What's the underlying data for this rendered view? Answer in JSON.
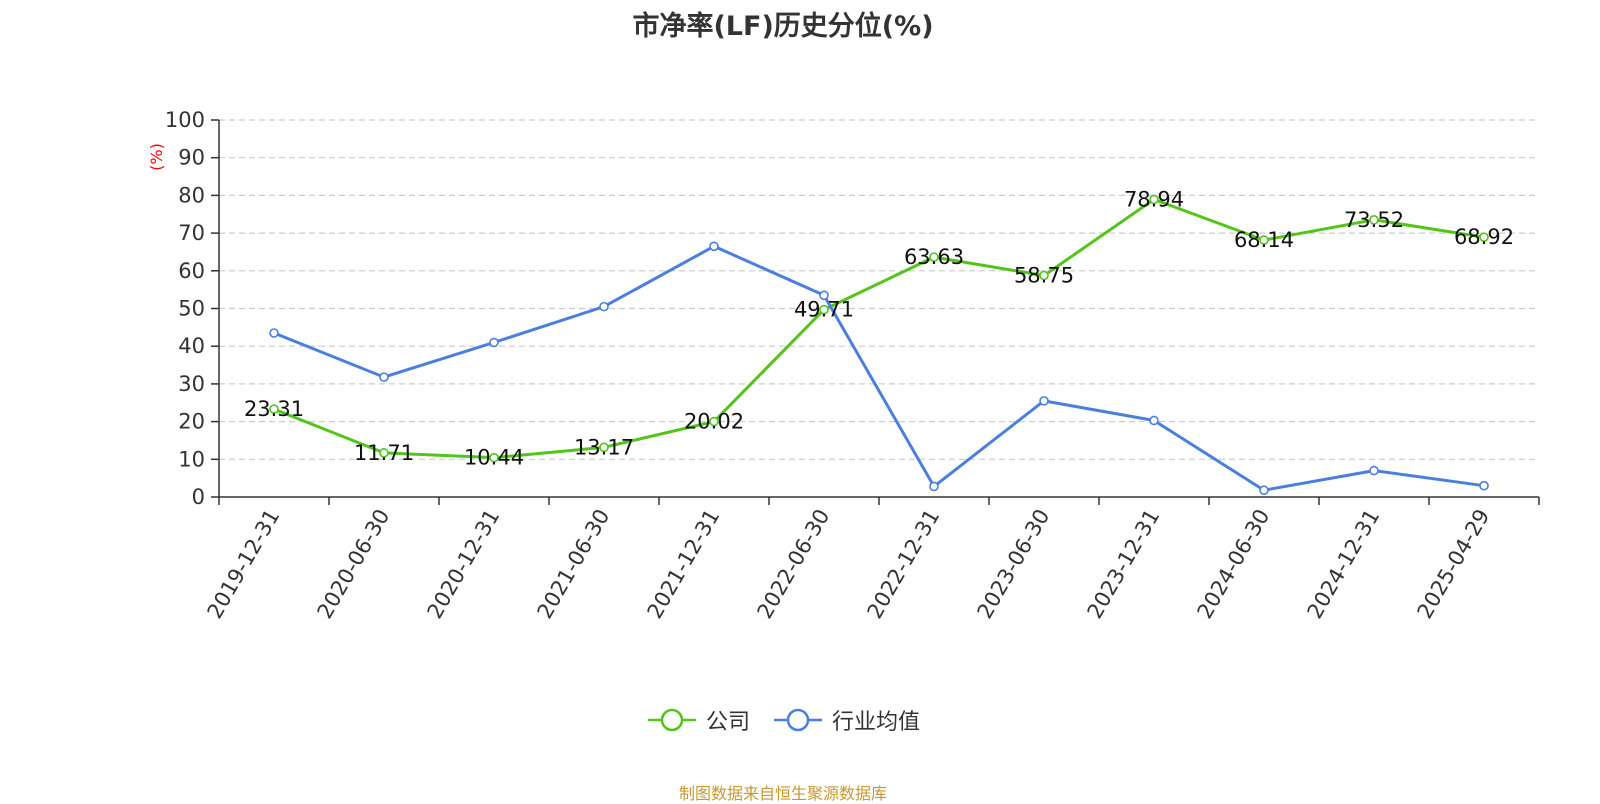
{
  "chart_data": {
    "type": "line",
    "title": "市净率(LF)历史分位(%)",
    "ylabel": "(%)",
    "ylim": [
      0,
      100
    ],
    "yticks": [
      0,
      10,
      20,
      30,
      40,
      50,
      60,
      70,
      80,
      90,
      100
    ],
    "grid": true,
    "legend_position": "bottom",
    "categories": [
      "2019-12-31",
      "2020-06-30",
      "2020-12-31",
      "2021-06-30",
      "2021-12-31",
      "2022-06-30",
      "2022-12-31",
      "2023-06-30",
      "2023-12-31",
      "2024-06-30",
      "2024-12-31",
      "2025-04-29"
    ],
    "series": [
      {
        "name": "公司",
        "color": "#52c41a",
        "show_labels": true,
        "values": [
          23.31,
          11.71,
          10.44,
          13.17,
          20.02,
          49.71,
          63.63,
          58.75,
          78.94,
          68.14,
          73.52,
          68.92
        ]
      },
      {
        "name": "行业均值",
        "color": "#4a7fdc",
        "show_labels": false,
        "values": [
          43.5,
          31.8,
          41.0,
          50.5,
          66.5,
          53.5,
          2.8,
          25.5,
          20.3,
          1.8,
          7.0,
          3.0
        ]
      }
    ]
  },
  "source": {
    "text": "制图数据来自恒生聚源数据库",
    "color": "#c8982e"
  }
}
